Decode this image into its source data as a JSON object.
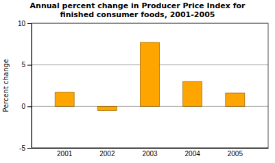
{
  "chart_data": {
    "type": "bar",
    "title": "Annual percent change in Producer Price Index for\nfinished consumer foods, 2001-2005",
    "y_label": "Percent change",
    "categories": [
      "2001",
      "2002",
      "2003",
      "2004",
      "2005"
    ],
    "values": [
      1.7,
      -0.5,
      7.7,
      3.0,
      1.6
    ],
    "color": "#FFA500",
    "ylim": [
      -5,
      10
    ],
    "yticks": [
      -5,
      0,
      5,
      10
    ],
    "grid": true
  }
}
